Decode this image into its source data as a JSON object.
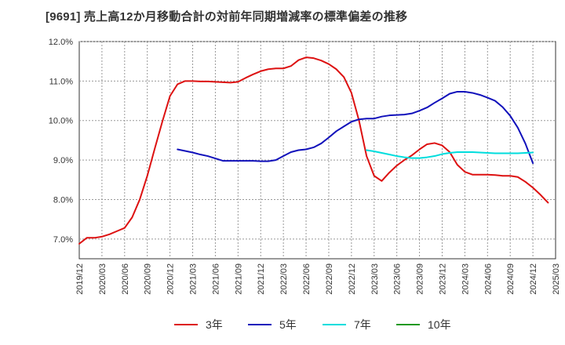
{
  "chart_data": {
    "type": "line",
    "title": "[9691]  売上高12か月移動合計の対前年同期増減率の標準偏差の推移",
    "xlabel": "",
    "ylabel": "",
    "ylim": [
      6.5,
      12.0
    ],
    "yticks": [
      7.0,
      8.0,
      9.0,
      10.0,
      11.0,
      12.0
    ],
    "ytick_labels": [
      "7.0%",
      "8.0%",
      "9.0%",
      "10.0%",
      "11.0%",
      "12.0%"
    ],
    "x_start": "2019-12",
    "x_end": "2025-03",
    "xtick_labels": [
      "2019/12",
      "2020/03",
      "2020/06",
      "2020/09",
      "2020/12",
      "2021/03",
      "2021/06",
      "2021/09",
      "2021/12",
      "2022/03",
      "2022/06",
      "2022/09",
      "2022/12",
      "2023/03",
      "2023/06",
      "2023/09",
      "2023/12",
      "2024/03",
      "2024/06",
      "2024/09",
      "2024/12",
      "2025/03"
    ],
    "grid": true,
    "legend_position": "bottom",
    "series": [
      {
        "name": "3年",
        "color": "#dd1111",
        "start": "2019-12",
        "values": [
          6.88,
          7.03,
          7.03,
          7.06,
          7.12,
          7.2,
          7.28,
          7.55,
          8.0,
          8.6,
          9.3,
          9.98,
          10.62,
          10.92,
          11.0,
          11.0,
          10.99,
          10.99,
          10.98,
          10.97,
          10.96,
          10.98,
          11.08,
          11.17,
          11.25,
          11.3,
          11.32,
          11.32,
          11.38,
          11.53,
          11.6,
          11.58,
          11.52,
          11.43,
          11.3,
          11.1,
          10.7,
          10.0,
          9.1,
          8.6,
          8.47,
          8.68,
          8.86,
          9.0,
          9.12,
          9.27,
          9.4,
          9.43,
          9.37,
          9.2,
          8.88,
          8.7,
          8.63,
          8.63,
          8.63,
          8.62,
          8.6,
          8.6,
          8.57,
          8.45,
          8.3,
          8.12,
          7.92
        ]
      },
      {
        "name": "5年",
        "color": "#1111bb",
        "start": "2021-01",
        "values": [
          9.27,
          9.23,
          9.19,
          9.14,
          9.1,
          9.04,
          8.98,
          8.98,
          8.98,
          8.98,
          8.98,
          8.97,
          8.97,
          9.0,
          9.1,
          9.2,
          9.25,
          9.27,
          9.32,
          9.42,
          9.57,
          9.73,
          9.85,
          9.97,
          10.03,
          10.05,
          10.05,
          10.1,
          10.13,
          10.14,
          10.15,
          10.18,
          10.25,
          10.33,
          10.45,
          10.56,
          10.68,
          10.73,
          10.73,
          10.7,
          10.65,
          10.58,
          10.5,
          10.34,
          10.12,
          9.82,
          9.42,
          8.92
        ]
      },
      {
        "name": "7年",
        "color": "#00dddd",
        "start": "2023-02",
        "values": [
          9.25,
          9.22,
          9.18,
          9.14,
          9.1,
          9.07,
          9.05,
          9.05,
          9.07,
          9.1,
          9.15,
          9.18,
          9.2,
          9.2,
          9.2,
          9.19,
          9.18,
          9.17,
          9.17,
          9.17,
          9.17,
          9.18,
          9.19
        ]
      },
      {
        "name": "10年",
        "color": "#229922",
        "start": "",
        "values": []
      }
    ]
  }
}
